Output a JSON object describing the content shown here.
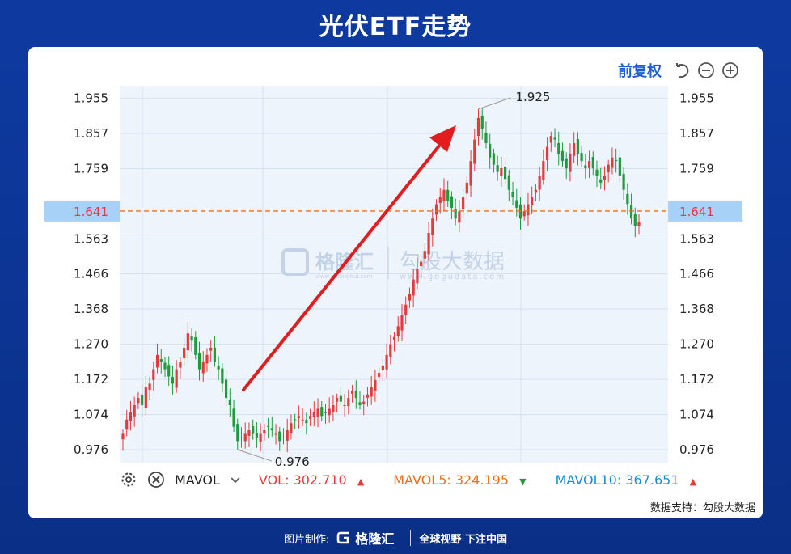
{
  "title": "光伏ETF走势",
  "toolbar": {
    "adjust_label": "前复权"
  },
  "watermark": {
    "brand1": "格隆汇",
    "brand1_url": "www.gelonghui.com",
    "brand2": "勾股大数据",
    "brand2_url": "www.gogudata.com"
  },
  "chart_data": {
    "type": "candlestick",
    "y_ticks": [
      "1.955",
      "1.857",
      "1.759",
      "1.563",
      "1.466",
      "1.368",
      "1.270",
      "1.172",
      "1.074",
      "0.976"
    ],
    "ylim": [
      0.94,
      1.99
    ],
    "current_price": "1.641",
    "annotations": {
      "high": "1.925",
      "low": "0.976"
    },
    "up_color": "#e23b3b",
    "down_color": "#1f9a3c",
    "closes": [
      1.02,
      1.06,
      1.08,
      1.1,
      1.12,
      1.1,
      1.15,
      1.16,
      1.2,
      1.24,
      1.22,
      1.2,
      1.18,
      1.16,
      1.2,
      1.22,
      1.26,
      1.3,
      1.28,
      1.24,
      1.2,
      1.22,
      1.24,
      1.26,
      1.22,
      1.2,
      1.16,
      1.12,
      1.1,
      1.04,
      1.0,
      1.01,
      1.02,
      1.03,
      1.02,
      1.01,
      1.02,
      1.03,
      1.04,
      1.03,
      1.02,
      1.0,
      1.01,
      1.03,
      1.05,
      1.06,
      1.07,
      1.06,
      1.05,
      1.07,
      1.08,
      1.09,
      1.07,
      1.08,
      1.09,
      1.1,
      1.12,
      1.11,
      1.1,
      1.12,
      1.14,
      1.12,
      1.1,
      1.11,
      1.13,
      1.15,
      1.17,
      1.19,
      1.21,
      1.24,
      1.27,
      1.29,
      1.32,
      1.35,
      1.38,
      1.41,
      1.45,
      1.48,
      1.5,
      1.53,
      1.58,
      1.62,
      1.66,
      1.68,
      1.7,
      1.67,
      1.65,
      1.62,
      1.64,
      1.68,
      1.72,
      1.78,
      1.84,
      1.9,
      1.87,
      1.83,
      1.79,
      1.77,
      1.75,
      1.76,
      1.73,
      1.7,
      1.68,
      1.65,
      1.62,
      1.64,
      1.66,
      1.68,
      1.7,
      1.74,
      1.78,
      1.82,
      1.85,
      1.84,
      1.8,
      1.78,
      1.76,
      1.8,
      1.83,
      1.8,
      1.78,
      1.76,
      1.78,
      1.76,
      1.74,
      1.72,
      1.74,
      1.77,
      1.79,
      1.78,
      1.74,
      1.7,
      1.66,
      1.62,
      1.6,
      1.61
    ]
  },
  "volume_bar": {
    "indicator": "MAVOL",
    "items": [
      {
        "label": "VOL:",
        "value": "302.710",
        "trend": "▲",
        "color": "#e23b3b"
      },
      {
        "label": "MAVOL5:",
        "value": "324.195",
        "trend": "▼",
        "color": "#e8701f",
        "trend_color": "#1f9a3c"
      },
      {
        "label": "MAVOL10:",
        "value": "367.651",
        "trend": "▲",
        "color": "#1a8fd0",
        "trend_color": "#e23b3b"
      }
    ]
  },
  "credit": "数据支持：勾股大数据",
  "footer": {
    "made_by": "图片制作:",
    "brand": "格隆汇",
    "slogan": "全球视野 下注中国"
  }
}
